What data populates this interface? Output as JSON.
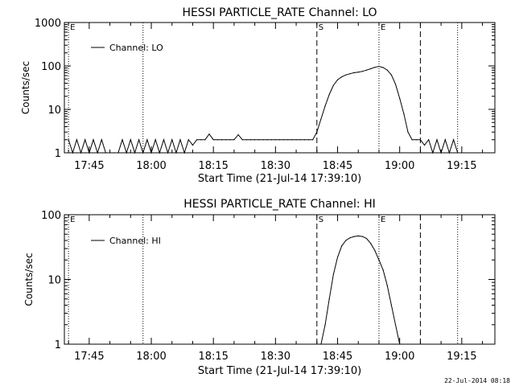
{
  "footer_date": "22-Jul-2014 08:18",
  "chart_data": [
    {
      "type": "line",
      "title": "HESSI PARTICLE_RATE Channel: LO",
      "xlabel": "Start Time (21-Jul-14 17:39:10)",
      "ylabel": "Counts/sec",
      "yscale": "log",
      "ylim": [
        1,
        1000
      ],
      "xlim": [
        "17:39",
        "19:23"
      ],
      "x_ticks": [
        "17:45",
        "18:00",
        "18:15",
        "18:30",
        "18:45",
        "19:00",
        "19:15"
      ],
      "y_ticks": [
        "1",
        "10",
        "100",
        "1000"
      ],
      "legend": "Channel: LO",
      "legend_position": "top-left",
      "markers": [
        {
          "time": "17:40",
          "style": "dotted",
          "label": "E"
        },
        {
          "time": "17:58",
          "style": "dotted",
          "label": ""
        },
        {
          "time": "18:40",
          "style": "dashed",
          "label": "S"
        },
        {
          "time": "18:55",
          "style": "dotted",
          "label": "E"
        },
        {
          "time": "19:05",
          "style": "dashed",
          "label": ""
        },
        {
          "time": "19:14",
          "style": "dotted",
          "label": ""
        }
      ],
      "series": [
        {
          "x": [
            "17:40",
            "17:41",
            "17:42",
            "17:43",
            "17:44",
            "17:45",
            "17:46",
            "17:47",
            "17:48",
            "17:49",
            "17:50",
            "17:51",
            "17:52",
            "17:53",
            "17:54",
            "17:55",
            "17:56",
            "17:57",
            "17:58",
            "17:59",
            "18:00",
            "18:01",
            "18:02",
            "18:03",
            "18:04",
            "18:05",
            "18:06",
            "18:07",
            "18:08",
            "18:09",
            "18:10",
            "18:11",
            "18:12",
            "18:13",
            "18:14",
            "18:15",
            "18:16",
            "18:17",
            "18:18",
            "18:19",
            "18:20",
            "18:21",
            "18:22",
            "18:23",
            "18:24",
            "18:25",
            "18:26",
            "18:27",
            "18:28",
            "18:29",
            "18:30",
            "18:31",
            "18:32",
            "18:33",
            "18:34",
            "18:35",
            "18:36",
            "18:37",
            "18:38",
            "18:39",
            "18:40",
            "18:41",
            "18:42",
            "18:43",
            "18:44",
            "18:45",
            "18:46",
            "18:47",
            "18:48",
            "18:49",
            "18:50",
            "18:51",
            "18:52",
            "18:53",
            "18:54",
            "18:55",
            "18:56",
            "18:57",
            "18:58",
            "18:59",
            "19:00",
            "19:01",
            "19:02",
            "19:03",
            "19:04",
            "19:05",
            "19:06",
            "19:07",
            "19:08",
            "19:09",
            "19:10",
            "19:11",
            "19:12",
            "19:13",
            "19:14"
          ],
          "values": [
            2,
            1,
            2,
            1,
            2,
            1,
            2,
            1,
            2,
            1,
            1,
            1,
            1,
            2,
            1,
            2,
            1,
            2,
            1,
            2,
            1,
            2,
            1,
            2,
            1,
            2,
            1,
            2,
            1,
            2,
            1.5,
            2,
            2,
            2,
            2.7,
            2,
            2,
            2,
            2,
            2,
            2,
            2.6,
            2,
            2,
            2,
            2,
            2,
            2,
            2,
            2,
            2,
            2,
            2,
            2,
            2,
            2,
            2,
            2,
            2,
            2,
            3,
            6,
            12,
            22,
            36,
            48,
            56,
            62,
            66,
            70,
            72,
            75,
            80,
            86,
            93,
            98,
            92,
            80,
            62,
            38,
            18,
            8,
            3,
            2,
            2,
            2,
            1.5,
            2,
            1,
            2,
            1,
            2,
            1,
            2,
            1
          ]
        }
      ]
    },
    {
      "type": "line",
      "title": "HESSI PARTICLE_RATE Channel: HI",
      "xlabel": "Start Time (21-Jul-14 17:39:10)",
      "ylabel": "Counts/sec",
      "yscale": "log",
      "ylim": [
        1,
        100
      ],
      "xlim": [
        "17:39",
        "19:23"
      ],
      "x_ticks": [
        "17:45",
        "18:00",
        "18:15",
        "18:30",
        "18:45",
        "19:00",
        "19:15"
      ],
      "y_ticks": [
        "1",
        "10",
        "100"
      ],
      "legend": "Channel: HI",
      "legend_position": "top-left",
      "markers": [
        {
          "time": "17:40",
          "style": "dotted",
          "label": "E"
        },
        {
          "time": "17:58",
          "style": "dotted",
          "label": ""
        },
        {
          "time": "18:40",
          "style": "dashed",
          "label": "S"
        },
        {
          "time": "18:55",
          "style": "dotted",
          "label": "E"
        },
        {
          "time": "19:05",
          "style": "dashed",
          "label": ""
        },
        {
          "time": "19:14",
          "style": "dotted",
          "label": ""
        }
      ],
      "series": [
        {
          "x": [
            "18:41",
            "18:42",
            "18:43",
            "18:44",
            "18:45",
            "18:46",
            "18:47",
            "18:48",
            "18:49",
            "18:50",
            "18:51",
            "18:52",
            "18:53",
            "18:54",
            "18:55",
            "18:56",
            "18:57",
            "18:58",
            "18:59",
            "19:00"
          ],
          "values": [
            1,
            2,
            5,
            12,
            22,
            33,
            40,
            44,
            46,
            47,
            46,
            43,
            36,
            28,
            20,
            14,
            8,
            4,
            2,
            1
          ]
        }
      ]
    }
  ]
}
